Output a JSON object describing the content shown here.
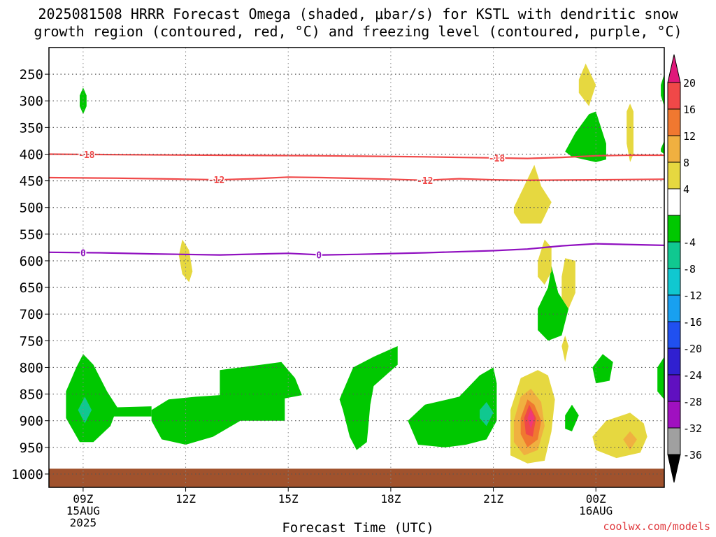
{
  "header": {
    "title_line1": "2025081508 HRRR Forecast Omega (shaded, μbar/s) for KSTL with dendritic snow",
    "title_line2": "growth region (contoured, red, °C) and freezing level (contoured, purple, °C)"
  },
  "credit": "coolwx.com/models",
  "chart_data": {
    "type": "time-height cross section",
    "xlabel": "Forecast Time (UTC)",
    "x_range_hours": [
      8.0,
      26.0
    ],
    "x_ticks": [
      {
        "hour": 9,
        "label": "09Z",
        "sub1": "15AUG",
        "sub2": "2025"
      },
      {
        "hour": 12,
        "label": "12Z",
        "sub1": "",
        "sub2": ""
      },
      {
        "hour": 15,
        "label": "15Z",
        "sub1": "",
        "sub2": ""
      },
      {
        "hour": 18,
        "label": "18Z",
        "sub1": "",
        "sub2": ""
      },
      {
        "hour": 21,
        "label": "21Z",
        "sub1": "",
        "sub2": ""
      },
      {
        "hour": 24,
        "label": "00Z",
        "sub1": "16AUG",
        "sub2": ""
      }
    ],
    "y_ticks_hPa": [
      250,
      300,
      350,
      400,
      450,
      500,
      550,
      600,
      650,
      700,
      750,
      800,
      850,
      900,
      950,
      1000
    ],
    "y_range_hPa": [
      200,
      1025
    ],
    "ground_top_hPa": 990,
    "colorbar": {
      "labels": [
        "20",
        "16",
        "12",
        "8",
        "4",
        "-4",
        "-8",
        "-12",
        "-16",
        "-20",
        "-24",
        "-28",
        "-32",
        "-36"
      ],
      "colors": [
        "#f03878",
        "#f04848",
        "#f07830",
        "#f0b040",
        "#e6d840",
        "#ffffff",
        "#00c800",
        "#10c890",
        "#10c8d0",
        "#18a0f0",
        "#2050f0",
        "#3020d0",
        "#6010c0",
        "#a010c0",
        "#a0a0a0",
        "#000000"
      ],
      "top_color": "#e0187a",
      "bottom_color": "#000000"
    },
    "contours": [
      {
        "name": "dendritic -18",
        "label": "-18",
        "color": "#f04848",
        "label_hours": [
          9.1,
          21.1
        ],
        "points": [
          [
            8.0,
            400
          ],
          [
            10,
            401
          ],
          [
            13,
            402
          ],
          [
            16,
            403
          ],
          [
            19,
            405
          ],
          [
            21,
            407
          ],
          [
            22,
            408
          ],
          [
            23,
            406
          ],
          [
            24,
            403
          ],
          [
            25,
            402
          ],
          [
            26,
            402
          ]
        ]
      },
      {
        "name": "dendritic -12",
        "label": "-12",
        "color": "#f04848",
        "label_hours": [
          12.9,
          19.0
        ],
        "points": [
          [
            8.0,
            444
          ],
          [
            10,
            445
          ],
          [
            12,
            447
          ],
          [
            13,
            448
          ],
          [
            14,
            446
          ],
          [
            15,
            443
          ],
          [
            16,
            444
          ],
          [
            18,
            447
          ],
          [
            19,
            449
          ],
          [
            20,
            446
          ],
          [
            21,
            448
          ],
          [
            22,
            449
          ],
          [
            24,
            448
          ],
          [
            26,
            447
          ]
        ]
      },
      {
        "name": "freezing level",
        "label": "0",
        "color": "#9010c0",
        "label_hours": [
          9.0,
          15.9
        ],
        "points": [
          [
            8.0,
            584
          ],
          [
            9.5,
            585
          ],
          [
            11,
            587
          ],
          [
            13,
            589
          ],
          [
            15,
            586
          ],
          [
            16,
            589
          ],
          [
            17,
            588
          ],
          [
            19,
            585
          ],
          [
            21,
            581
          ],
          [
            22,
            578
          ],
          [
            23,
            572
          ],
          [
            24,
            568
          ],
          [
            26,
            571
          ]
        ]
      }
    ],
    "shaded_regions": [
      {
        "class": "omega -8 to -4 (ascent)",
        "color": "#00c800",
        "polys": [
          [
            [
              8.9,
              290
            ],
            [
              9.0,
              275
            ],
            [
              9.1,
              290
            ],
            [
              9.1,
              310
            ],
            [
              9.0,
              325
            ],
            [
              8.9,
              310
            ]
          ],
          [
            [
              8.5,
              845
            ],
            [
              8.8,
              800
            ],
            [
              9.0,
              775
            ],
            [
              9.3,
              795
            ],
            [
              9.7,
              845
            ],
            [
              10.0,
              875
            ],
            [
              9.8,
              910
            ],
            [
              9.3,
              940
            ],
            [
              8.9,
              940
            ],
            [
              8.5,
              895
            ]
          ],
          [
            [
              9.9,
              875
            ],
            [
              11.0,
              873
            ],
            [
              11.0,
              892
            ],
            [
              9.9,
              892
            ]
          ],
          [
            [
              11.0,
              880
            ],
            [
              11.5,
              860
            ],
            [
              12.3,
              855
            ],
            [
              13.0,
              852
            ],
            [
              13.0,
              805
            ],
            [
              14.8,
              790
            ],
            [
              15.2,
              820
            ],
            [
              15.4,
              852
            ],
            [
              14.9,
              858
            ],
            [
              14.9,
              900
            ],
            [
              13.6,
              900
            ],
            [
              12.8,
              930
            ],
            [
              12.0,
              945
            ],
            [
              11.3,
              935
            ],
            [
              11.0,
              900
            ]
          ],
          [
            [
              16.5,
              860
            ],
            [
              16.9,
              800
            ],
            [
              17.5,
              780
            ],
            [
              18.2,
              760
            ],
            [
              18.2,
              795
            ],
            [
              17.5,
              835
            ],
            [
              17.4,
              870
            ],
            [
              17.3,
              940
            ],
            [
              17.0,
              955
            ],
            [
              16.8,
              930
            ],
            [
              16.6,
              880
            ]
          ],
          [
            [
              18.5,
              900
            ],
            [
              19.0,
              870
            ],
            [
              20.0,
              855
            ],
            [
              20.6,
              815
            ],
            [
              21.0,
              800
            ],
            [
              21.1,
              830
            ],
            [
              21.1,
              900
            ],
            [
              20.8,
              935
            ],
            [
              20.2,
              945
            ],
            [
              19.6,
              950
            ],
            [
              18.8,
              945
            ]
          ],
          [
            [
              22.3,
              690
            ],
            [
              22.6,
              650
            ],
            [
              22.7,
              610
            ],
            [
              22.9,
              660
            ],
            [
              23.2,
              690
            ],
            [
              23.0,
              740
            ],
            [
              22.6,
              750
            ],
            [
              22.3,
              730
            ]
          ],
          [
            [
              23.1,
              890
            ],
            [
              23.3,
              870
            ],
            [
              23.5,
              890
            ],
            [
              23.3,
              920
            ],
            [
              23.1,
              915
            ]
          ],
          [
            [
              23.9,
              800
            ],
            [
              24.2,
              775
            ],
            [
              24.5,
              790
            ],
            [
              24.4,
              825
            ],
            [
              24.0,
              830
            ]
          ],
          [
            [
              23.1,
              395
            ],
            [
              23.4,
              360
            ],
            [
              23.8,
              325
            ],
            [
              24.0,
              320
            ],
            [
              24.3,
              380
            ],
            [
              24.3,
              410
            ],
            [
              24.0,
              415
            ],
            [
              23.3,
              405
            ]
          ],
          [
            [
              25.8,
              800
            ],
            [
              26.0,
              780
            ],
            [
              26.0,
              860
            ],
            [
              25.8,
              845
            ]
          ],
          [
            [
              25.9,
              270
            ],
            [
              26.0,
              250
            ],
            [
              26.0,
              310
            ],
            [
              25.9,
              290
            ]
          ],
          [
            [
              25.9,
              390
            ],
            [
              26.0,
              375
            ],
            [
              26.0,
              400
            ],
            [
              25.9,
              395
            ]
          ]
        ]
      },
      {
        "class": "omega -12 to -8",
        "color": "#10c890",
        "polys": [
          [
            [
              8.85,
              880
            ],
            [
              9.05,
              855
            ],
            [
              9.25,
              880
            ],
            [
              9.05,
              905
            ]
          ],
          [
            [
              20.6,
              880
            ],
            [
              20.8,
              865
            ],
            [
              21.0,
              885
            ],
            [
              20.8,
              910
            ],
            [
              20.6,
              895
            ]
          ]
        ]
      },
      {
        "class": "omega 4 to 8 (descent)",
        "color": "#e6d840",
        "polys": [
          [
            [
              23.5,
              260
            ],
            [
              23.7,
              230
            ],
            [
              24.0,
              270
            ],
            [
              23.8,
              310
            ],
            [
              23.5,
              285
            ]
          ],
          [
            [
              24.9,
              320
            ],
            [
              25.0,
              305
            ],
            [
              25.1,
              320
            ],
            [
              25.1,
              400
            ],
            [
              25.0,
              415
            ],
            [
              24.9,
              380
            ]
          ],
          [
            [
              21.6,
              500
            ],
            [
              21.9,
              460
            ],
            [
              22.2,
              420
            ],
            [
              22.4,
              460
            ],
            [
              22.7,
              490
            ],
            [
              22.4,
              530
            ],
            [
              21.8,
              530
            ],
            [
              21.6,
              510
            ]
          ],
          [
            [
              22.3,
              600
            ],
            [
              22.5,
              560
            ],
            [
              22.7,
              575
            ],
            [
              22.7,
              620
            ],
            [
              22.5,
              645
            ],
            [
              22.3,
              630
            ]
          ],
          [
            [
              11.8,
              590
            ],
            [
              11.9,
              560
            ],
            [
              12.1,
              580
            ],
            [
              12.2,
              620
            ],
            [
              12.1,
              640
            ],
            [
              11.9,
              625
            ]
          ],
          [
            [
              23.0,
              630
            ],
            [
              23.1,
              595
            ],
            [
              23.4,
              600
            ],
            [
              23.4,
              660
            ],
            [
              23.2,
              690
            ],
            [
              23.0,
              670
            ]
          ],
          [
            [
              23.0,
              760
            ],
            [
              23.1,
              740
            ],
            [
              23.2,
              760
            ],
            [
              23.1,
              790
            ]
          ],
          [
            [
              21.5,
              880
            ],
            [
              21.8,
              820
            ],
            [
              22.3,
              805
            ],
            [
              22.6,
              815
            ],
            [
              22.8,
              860
            ],
            [
              22.7,
              920
            ],
            [
              22.5,
              975
            ],
            [
              22.0,
              980
            ],
            [
              21.5,
              965
            ]
          ],
          [
            [
              23.9,
              930
            ],
            [
              24.3,
              900
            ],
            [
              25.0,
              885
            ],
            [
              25.4,
              905
            ],
            [
              25.5,
              930
            ],
            [
              25.3,
              960
            ],
            [
              24.6,
              970
            ],
            [
              24.0,
              955
            ]
          ]
        ]
      },
      {
        "class": "omega 8 to 12",
        "color": "#f0b040",
        "polys": [
          [
            [
              21.6,
              900
            ],
            [
              21.8,
              855
            ],
            [
              22.1,
              840
            ],
            [
              22.4,
              865
            ],
            [
              22.5,
              910
            ],
            [
              22.3,
              955
            ],
            [
              21.9,
              965
            ],
            [
              21.6,
              940
            ]
          ],
          [
            [
              24.8,
              935
            ],
            [
              25.0,
              920
            ],
            [
              25.2,
              935
            ],
            [
              25.0,
              955
            ]
          ]
        ]
      },
      {
        "class": "omega 12 to 16",
        "color": "#f07830",
        "polys": [
          [
            [
              21.8,
              895
            ],
            [
              22.0,
              860
            ],
            [
              22.2,
              870
            ],
            [
              22.4,
              900
            ],
            [
              22.3,
              935
            ],
            [
              22.0,
              950
            ],
            [
              21.8,
              925
            ]
          ]
        ]
      },
      {
        "class": "omega 16 to 20",
        "color": "#f04848",
        "polys": [
          [
            [
              21.9,
              895
            ],
            [
              22.05,
              870
            ],
            [
              22.25,
              895
            ],
            [
              22.15,
              930
            ],
            [
              21.95,
              925
            ]
          ]
        ]
      },
      {
        "class": "omega >20",
        "color": "#f03878",
        "polys": [
          [
            [
              22.0,
              895
            ],
            [
              22.1,
              878
            ],
            [
              22.2,
              895
            ],
            [
              22.1,
              915
            ]
          ]
        ]
      }
    ]
  }
}
